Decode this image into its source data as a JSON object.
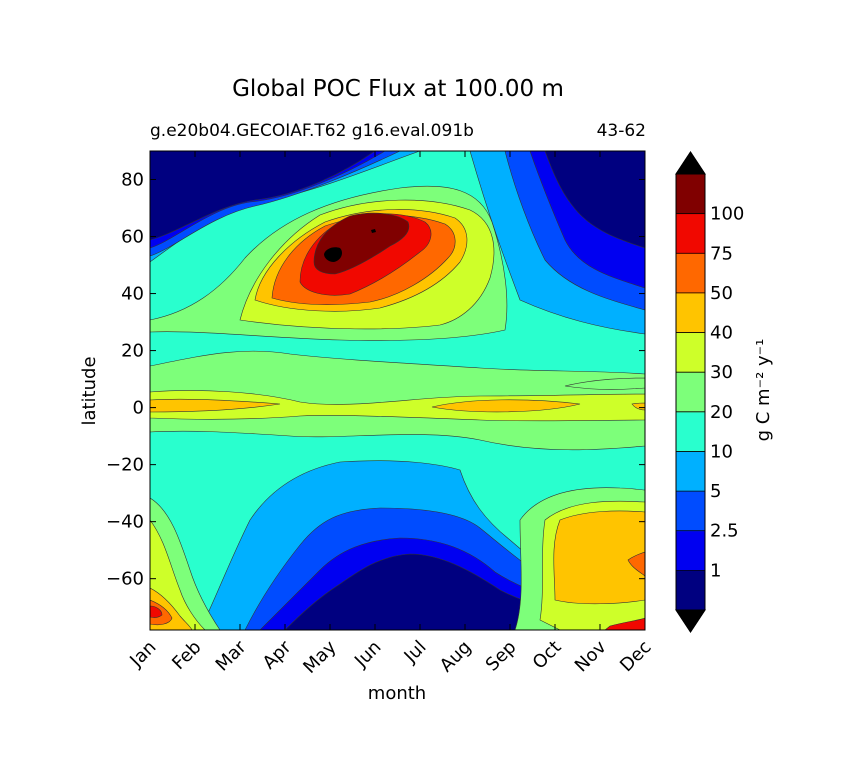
{
  "chart_data": {
    "type": "heatmap",
    "title": "Global POC Flux at 100.00 m",
    "subtitle_left": "g.e20b04.GECOIAF.T62 g16.eval.091b",
    "subtitle_right": "43-62",
    "xlabel": "month",
    "ylabel": "latitude",
    "x_ticks": [
      "Jan",
      "Feb",
      "Mar",
      "Apr",
      "May",
      "Jun",
      "Jul",
      "Aug",
      "Sep",
      "Oct",
      "Nov",
      "Dec"
    ],
    "xlim": [
      0.5,
      11.5
    ],
    "y_ticks": [
      80,
      60,
      40,
      20,
      0,
      -20,
      -40,
      -60
    ],
    "y_tick_labels": [
      "80",
      "60",
      "40",
      "20",
      "0",
      "−20",
      "−40",
      "−60"
    ],
    "ylim": [
      -78,
      90
    ],
    "colorbar": {
      "label": "g C m⁻² y⁻¹",
      "levels": [
        1,
        2.5,
        5,
        10,
        20,
        30,
        40,
        50,
        75,
        100
      ],
      "level_labels": [
        "1",
        "2.5",
        "5",
        "10",
        "20",
        "30",
        "40",
        "50",
        "75",
        "100"
      ],
      "extend": "both",
      "colors": [
        "#000080",
        "#0000f1",
        "#004cff",
        "#00b0ff",
        "#29ffce",
        "#7dff7a",
        "#ceff29",
        "#ffc400",
        "#ff6800",
        "#f10800",
        "#800000"
      ],
      "under_color": "#000000",
      "over_color": "#000000"
    },
    "bands": [
      {
        "lat": 85,
        "level": 0
      },
      {
        "lat": 75,
        "level": 3
      },
      {
        "lat": 62,
        "level": 9
      },
      {
        "lat": 53,
        "level": 10
      },
      {
        "lat": 45,
        "level": 8
      },
      {
        "lat": 30,
        "level": 5
      },
      {
        "lat": 20,
        "level": 4
      },
      {
        "lat": 10,
        "level": 5
      },
      {
        "lat": 0,
        "level": 7
      },
      {
        "lat": -10,
        "level": 5
      },
      {
        "lat": -25,
        "level": 4
      },
      {
        "lat": -45,
        "level": 3
      },
      {
        "lat": -60,
        "level": 1
      },
      {
        "lat": -70,
        "level": 0
      }
    ]
  }
}
